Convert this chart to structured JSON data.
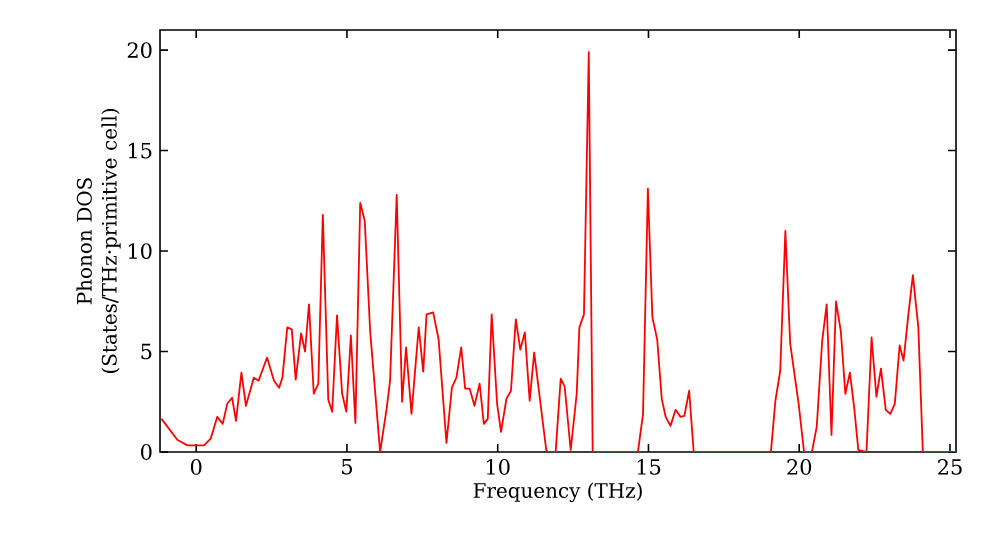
{
  "chart_data": {
    "type": "line",
    "xlabel": "Frequency (THz)",
    "ylabel": "Phonon DOS (States/THz·primitive cell)",
    "xlim": [
      -1.2,
      25.2
    ],
    "ylim": [
      0,
      21
    ],
    "xticks": [
      0,
      5,
      10,
      15,
      20,
      25
    ],
    "yticks": [
      0,
      5,
      10,
      15,
      20
    ],
    "marker": "none",
    "line_style": "solid",
    "series": [
      {
        "color": "#ff0000",
        "x": [
          -1.15,
          -0.62,
          -0.29,
          0.26,
          0.48,
          0.7,
          0.88,
          1.03,
          1.19,
          1.32,
          1.5,
          1.65,
          1.91,
          2.07,
          2.35,
          2.58,
          2.75,
          2.86,
          3.02,
          3.17,
          3.3,
          3.48,
          3.61,
          3.74,
          3.9,
          4.05,
          4.2,
          4.38,
          4.51,
          4.67,
          4.84,
          4.98,
          5.13,
          5.28,
          5.44,
          5.59,
          5.77,
          6.1,
          6.32,
          6.43,
          6.65,
          6.83,
          6.96,
          7.14,
          7.38,
          7.53,
          7.64,
          7.86,
          8.04,
          8.3,
          8.48,
          8.63,
          8.79,
          8.92,
          9.07,
          9.23,
          9.4,
          9.54,
          9.67,
          9.8,
          9.98,
          10.11,
          10.29,
          10.44,
          10.6,
          10.75,
          10.9,
          11.06,
          11.21,
          11.61,
          11.65,
          11.92,
          12.09,
          12.22,
          12.42,
          12.62,
          12.71,
          12.86,
          13.02,
          13.15,
          14.65,
          14.82,
          14.98,
          15.13,
          15.29,
          15.44,
          15.57,
          15.73,
          15.9,
          16.06,
          16.19,
          16.35,
          16.5,
          19.06,
          19.21,
          19.37,
          19.54,
          19.7,
          19.98,
          20.16,
          20.42,
          20.58,
          20.76,
          20.91,
          21.07,
          21.22,
          21.38,
          21.53,
          21.68,
          21.82,
          21.96,
          22.23,
          22.4,
          22.56,
          22.71,
          22.87,
          23.02,
          23.17,
          23.33,
          23.46,
          23.62,
          23.77,
          23.95,
          24.1,
          25.2
        ],
        "values": [
          1.65,
          0.6,
          0.33,
          0.33,
          0.66,
          1.75,
          1.4,
          2.4,
          2.7,
          1.55,
          3.95,
          2.3,
          3.7,
          3.55,
          4.7,
          3.55,
          3.2,
          3.7,
          6.2,
          6.1,
          3.6,
          5.9,
          5.0,
          7.35,
          2.9,
          3.4,
          11.8,
          2.6,
          2.0,
          6.8,
          2.9,
          2.0,
          5.8,
          1.45,
          12.4,
          11.5,
          6.0,
          0,
          2.2,
          3.55,
          12.8,
          2.5,
          5.2,
          1.9,
          6.2,
          4.0,
          6.85,
          6.95,
          5.6,
          0.45,
          3.2,
          3.7,
          5.2,
          3.15,
          3.15,
          2.3,
          3.4,
          1.4,
          1.65,
          6.85,
          2.4,
          1.0,
          2.65,
          3.05,
          6.6,
          5.1,
          5.95,
          2.55,
          4.95,
          0.1,
          0,
          0,
          3.65,
          3.25,
          0.1,
          2.9,
          6.2,
          6.85,
          19.9,
          0,
          0,
          1.9,
          13.1,
          6.7,
          5.6,
          2.65,
          1.75,
          1.3,
          2.1,
          1.75,
          1.8,
          3.05,
          0,
          0,
          2.55,
          4.05,
          11.0,
          5.4,
          2.4,
          0,
          0,
          1.25,
          5.5,
          7.35,
          0.85,
          7.5,
          6.0,
          2.9,
          3.95,
          2.25,
          0.1,
          0,
          5.7,
          2.75,
          4.15,
          2.1,
          1.9,
          2.4,
          5.3,
          4.55,
          6.85,
          8.8,
          6.2,
          0,
          0
        ]
      }
    ]
  }
}
